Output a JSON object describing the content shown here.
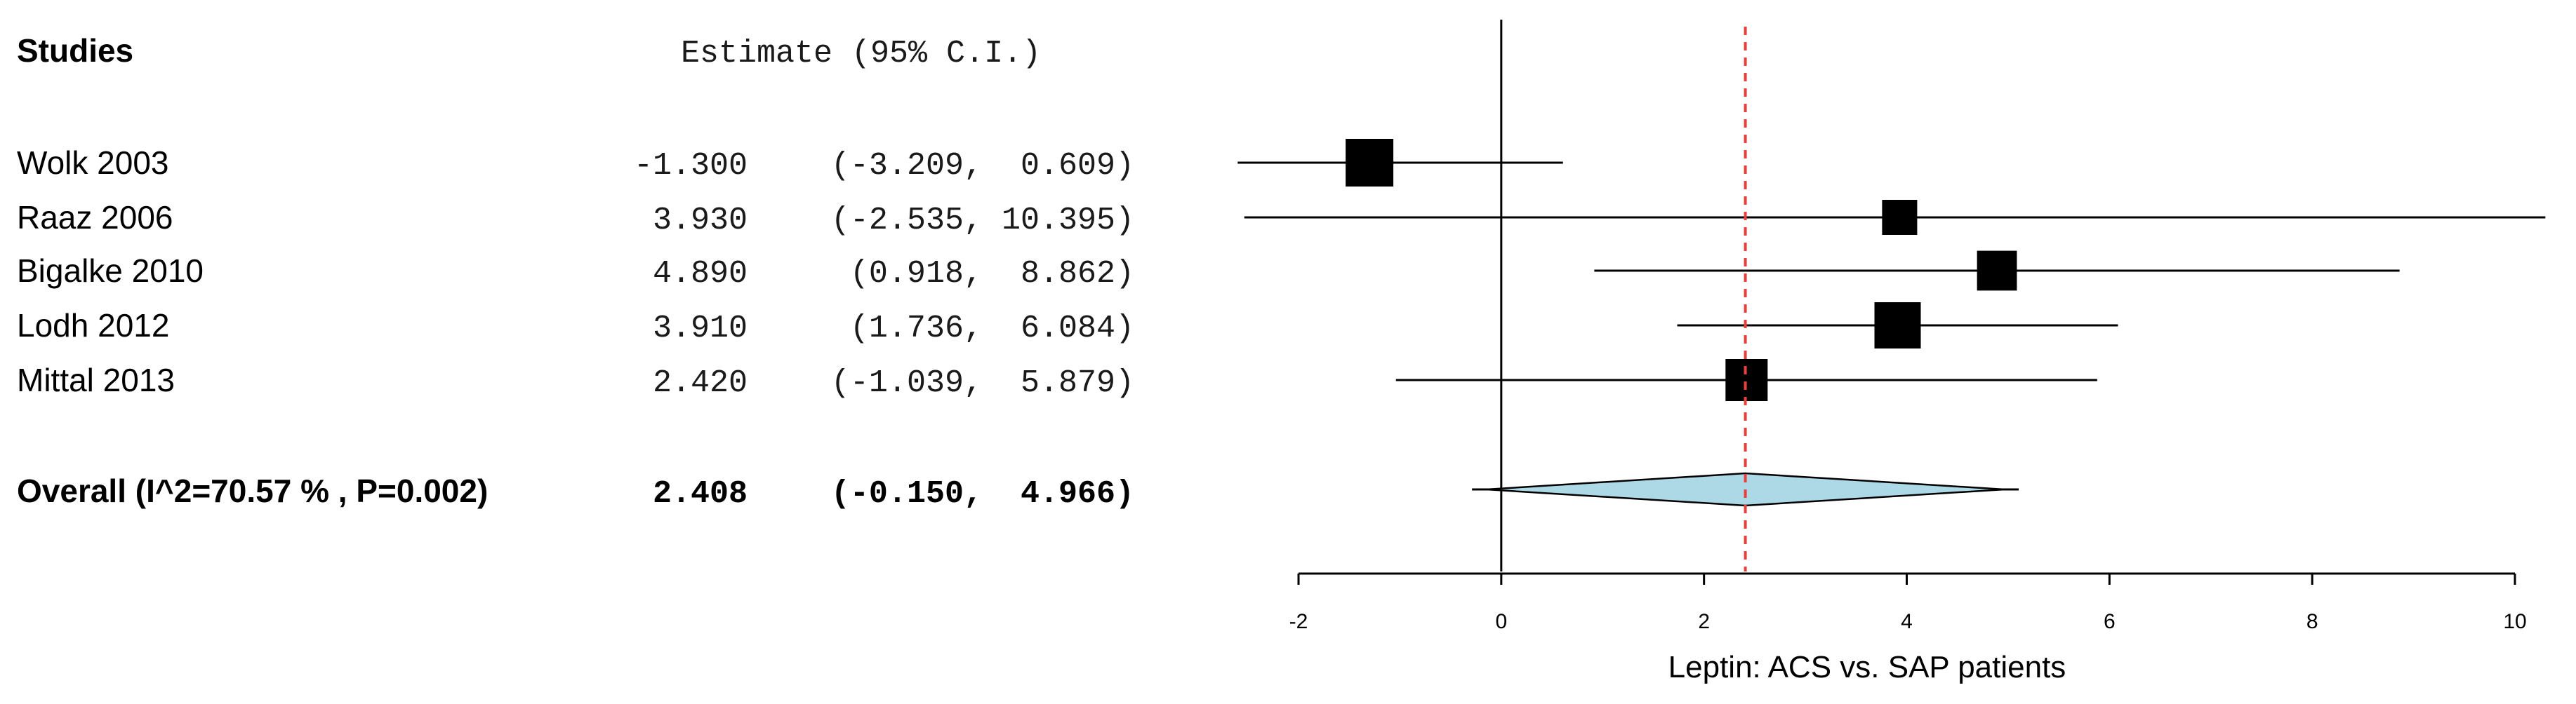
{
  "chart_data": {
    "type": "forest",
    "header": {
      "studies": "Studies",
      "estimate": "Estimate (95% C.I.)"
    },
    "studies": [
      {
        "label": "Wolk 2003",
        "estimate": -1.3,
        "lower": -3.209,
        "upper": 0.609,
        "estimate_text": "-1.300",
        "ci_text": "(-3.209,  0.609)",
        "weight": 1.0
      },
      {
        "label": "Raaz 2006",
        "estimate": 3.93,
        "lower": -2.535,
        "upper": 10.395,
        "estimate_text": "3.930",
        "ci_text": "(-2.535, 10.395)",
        "weight": 0.55
      },
      {
        "label": "Bigalke  2010",
        "estimate": 4.89,
        "lower": 0.918,
        "upper": 8.862,
        "estimate_text": "4.890",
        "ci_text": "(0.918,  8.862)",
        "weight": 0.72
      },
      {
        "label": "Lodh 2012",
        "estimate": 3.91,
        "lower": 1.736,
        "upper": 6.084,
        "estimate_text": "3.910",
        "ci_text": "(1.736,  6.084)",
        "weight": 0.95
      },
      {
        "label": "Mittal  2013",
        "estimate": 2.42,
        "lower": -1.039,
        "upper": 5.879,
        "estimate_text": "2.420",
        "ci_text": "(-1.039,  5.879)",
        "weight": 0.8
      }
    ],
    "overall": {
      "label": "Overall (I^2=70.57 % , P=0.002)",
      "estimate": 2.408,
      "lower": -0.15,
      "upper": 4.966,
      "estimate_text": "2.408",
      "ci_text": "(-0.150,  4.966)"
    },
    "x_ticks": [
      -2,
      0,
      2,
      4,
      6,
      8,
      10
    ],
    "xlim": [
      -2,
      10
    ],
    "xlabel": "Leptin: ACS vs. SAP patients",
    "null_line": 0,
    "colors": {
      "diamond_fill": "#add8e6",
      "reference_line": "#e8413c",
      "ink": "#000000"
    }
  }
}
